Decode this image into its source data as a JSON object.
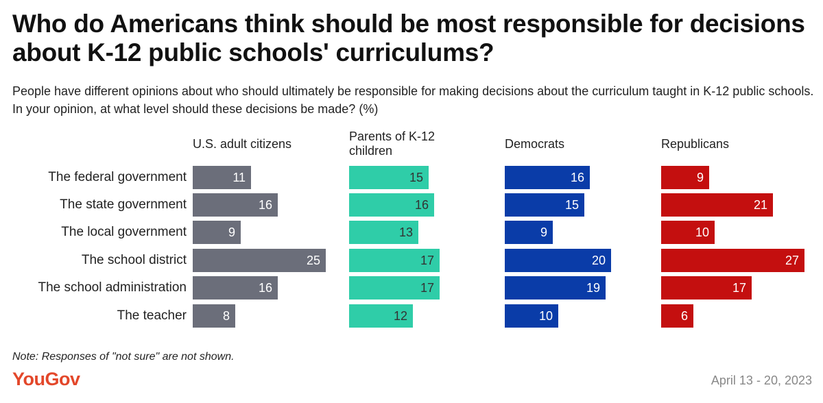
{
  "title": "Who do Americans think should be most responsible for decisions about K-12 public schools' curriculums?",
  "subtitle": "People have different opinions about who should ultimately be responsible for making decisions about the curriculum taught in K-12 public schools. In your opinion, at what level should these decisions be made? (%)",
  "note": "Note: Responses of \"not sure\" are not shown.",
  "logo": "YouGov",
  "date": "April 13 - 20, 2023",
  "chart_data": {
    "type": "bar",
    "orientation": "horizontal",
    "unit": "%",
    "categories": [
      "The federal government",
      "The state government",
      "The local government",
      "The school district",
      "The school administration",
      "The teacher"
    ],
    "series": [
      {
        "name": "U.S. adult citizens",
        "color": "#6b6e7a",
        "text_color": "#ffffff",
        "values": [
          11,
          16,
          9,
          25,
          16,
          8
        ]
      },
      {
        "name": "Parents of K-12 children",
        "color": "#2fcda8",
        "text_color": "#333333",
        "values": [
          15,
          16,
          13,
          17,
          17,
          12
        ]
      },
      {
        "name": "Democrats",
        "color": "#0a3ca8",
        "text_color": "#ffffff",
        "values": [
          16,
          15,
          9,
          20,
          19,
          10
        ]
      },
      {
        "name": "Republicans",
        "color": "#c40f0f",
        "text_color": "#ffffff",
        "values": [
          9,
          21,
          10,
          27,
          17,
          6
        ]
      }
    ]
  }
}
